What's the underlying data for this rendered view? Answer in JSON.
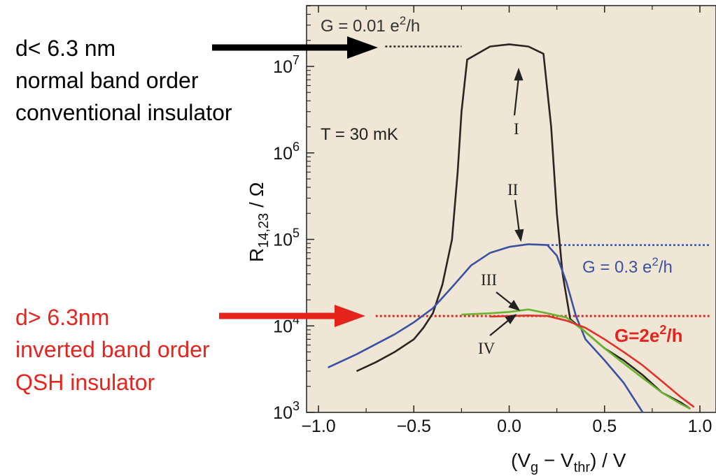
{
  "chart_data": {
    "type": "line",
    "x_axis": {
      "label": "(V",
      "label_sub1": "g",
      "label_mid": " − V",
      "label_sub2": "thr",
      "label_end": ") / V",
      "range": [
        -1.0,
        1.0
      ],
      "tick_values": [
        -1.0,
        -0.5,
        0.0,
        0.5,
        1.0
      ],
      "tick_labels": [
        "−1.0",
        "−0.5",
        "0.0",
        "0.5",
        "1.0"
      ]
    },
    "y_axis": {
      "label": "R",
      "label_sub": "14,23",
      "label_end": " / Ω",
      "scale": "log",
      "range": [
        1000,
        30000000
      ],
      "ticks": [
        {
          "value": 1000,
          "base": "10",
          "exp": "3"
        },
        {
          "value": 10000,
          "base": "10",
          "exp": "4"
        },
        {
          "value": 100000,
          "base": "10",
          "exp": "5"
        },
        {
          "value": 1000000,
          "base": "10",
          "exp": "6"
        },
        {
          "value": 10000000,
          "base": "10",
          "exp": "7"
        }
      ]
    },
    "background_color": "#efe6d6",
    "series": [
      {
        "name": "I",
        "color": "#2b2420",
        "points": [
          [
            -0.8,
            3000
          ],
          [
            -0.7,
            3800
          ],
          [
            -0.6,
            5000
          ],
          [
            -0.5,
            7000
          ],
          [
            -0.45,
            9500
          ],
          [
            -0.4,
            14000
          ],
          [
            -0.35,
            30000
          ],
          [
            -0.3,
            100000
          ],
          [
            -0.27,
            600000
          ],
          [
            -0.25,
            3000000
          ],
          [
            -0.22,
            12000000
          ],
          [
            -0.1,
            17000000
          ],
          [
            0.0,
            18000000
          ],
          [
            0.1,
            17000000
          ],
          [
            0.18,
            14000000
          ],
          [
            0.22,
            2000000
          ],
          [
            0.25,
            200000
          ],
          [
            0.28,
            40000
          ],
          [
            0.32,
            12000
          ],
          [
            0.4,
            8500
          ],
          [
            0.5,
            5500
          ],
          [
            0.6,
            4000
          ],
          [
            0.7,
            2700
          ],
          [
            0.8,
            1700
          ],
          [
            0.9,
            1300
          ],
          [
            0.95,
            1100
          ]
        ]
      },
      {
        "name": "II",
        "color": "#3a51a3",
        "points": [
          [
            -0.95,
            3300
          ],
          [
            -0.8,
            4700
          ],
          [
            -0.6,
            8000
          ],
          [
            -0.5,
            11000
          ],
          [
            -0.4,
            16000
          ],
          [
            -0.3,
            28000
          ],
          [
            -0.2,
            50000
          ],
          [
            -0.1,
            70000
          ],
          [
            0.0,
            82000
          ],
          [
            0.1,
            88000
          ],
          [
            0.2,
            86000
          ],
          [
            0.25,
            65000
          ],
          [
            0.3,
            32000
          ],
          [
            0.35,
            13000
          ],
          [
            0.4,
            7000
          ],
          [
            0.5,
            4000
          ],
          [
            0.6,
            2200
          ],
          [
            0.7,
            1000
          ]
        ]
      },
      {
        "name": "III",
        "color": "#6bb32e",
        "points": [
          [
            -0.25,
            13500
          ],
          [
            -0.1,
            14000
          ],
          [
            0.0,
            14500
          ],
          [
            0.1,
            15500
          ],
          [
            0.2,
            14000
          ],
          [
            0.3,
            12500
          ],
          [
            0.4,
            8500
          ],
          [
            0.5,
            5500
          ],
          [
            0.6,
            3700
          ],
          [
            0.7,
            2500
          ],
          [
            0.8,
            1700
          ],
          [
            0.9,
            1250
          ],
          [
            0.95,
            1100
          ]
        ]
      },
      {
        "name": "IV",
        "color": "#e13229",
        "points": [
          [
            -0.1,
            12800
          ],
          [
            0.0,
            13000
          ],
          [
            0.1,
            13200
          ],
          [
            0.2,
            13000
          ],
          [
            0.3,
            11500
          ],
          [
            0.4,
            9500
          ],
          [
            0.5,
            7000
          ],
          [
            0.6,
            5000
          ],
          [
            0.7,
            3500
          ],
          [
            0.8,
            2300
          ],
          [
            0.9,
            1500
          ],
          [
            0.97,
            1150
          ]
        ]
      }
    ],
    "reference_lines": [
      {
        "label": "G = 0.01 e²/h",
        "y": 17000000,
        "color": "#2b2420"
      },
      {
        "label": "G = 0.3 e²/h",
        "y": 86000,
        "color": "#3a51a3"
      },
      {
        "label": "G=2e²/h",
        "y": 13000,
        "color": "#e6241e"
      }
    ],
    "curve_labels": [
      "I",
      "II",
      "III",
      "IV"
    ]
  },
  "annotations": {
    "top": {
      "lines": [
        "d< 6.3 nm",
        "normal band order",
        "conventional insulator"
      ],
      "color": "#000000"
    },
    "bottom": {
      "lines": [
        "d> 6.3nm",
        "inverted band order",
        "QSH insulator"
      ],
      "color": "#e6241e"
    },
    "in_plot": {
      "g_top": {
        "prefix": "G = 0.01 e",
        "sup": "2",
        "suffix": "/h"
      },
      "temperature": "T = 30 mK",
      "g_blue": {
        "prefix": "G = 0.3 e",
        "sup": "2",
        "suffix": "/h"
      },
      "g_red": {
        "prefix": "G=2e",
        "sup": "2",
        "suffix": "/h"
      }
    }
  }
}
